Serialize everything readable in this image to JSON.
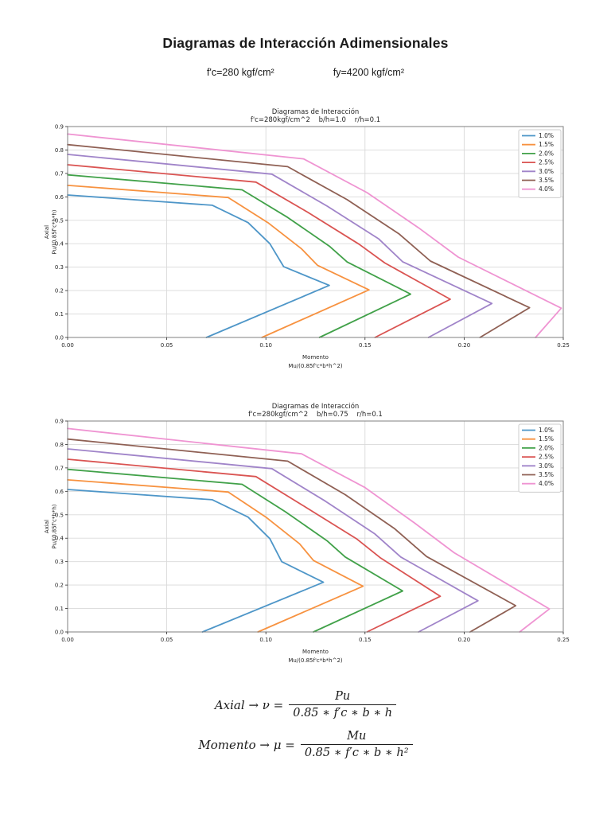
{
  "page": {
    "title": "Diagramas de Interacción Adimensionales",
    "subtitle_fc": "f'c=280 kgf/cm²",
    "subtitle_fy": "fy=4200 kgf/cm²"
  },
  "formulas": {
    "axial": {
      "lhs": "Axial → ν =",
      "numerator": "Pu",
      "denominator": "0.85 ∗ f′c ∗ b ∗ h"
    },
    "momento": {
      "lhs": "Momento → μ =",
      "numerator": "Mu",
      "denominator": "0.85 ∗ f′c ∗ b ∗ h²"
    }
  },
  "chart_data": [
    {
      "type": "line",
      "title_line1": "Diagramas de Interacción",
      "title_line2": "f'c=280kgf/cm^2    b/h=1.0    r/h=0.1",
      "xlabel_line1": "Momento",
      "xlabel_line2": "Mu/(0.85f'c*b*h^2)",
      "ylabel_line1": "Axial",
      "ylabel_line2": "Pu/(0.85f'c*b*h)",
      "xlim": [
        0,
        0.25
      ],
      "ylim": [
        0,
        0.9
      ],
      "x_ticks": [
        "0.00",
        "0.05",
        "0.10",
        "0.15",
        "0.20",
        "0.25"
      ],
      "y_ticks": [
        "0.0",
        "0.1",
        "0.2",
        "0.3",
        "0.4",
        "0.5",
        "0.6",
        "0.7",
        "0.8",
        "0.9"
      ],
      "grid": true,
      "legend_position": "upper right",
      "series": [
        {
          "name": "1.0%",
          "color": "#4e96c8",
          "points": [
            [
              0,
              0.608
            ],
            [
              0.073,
              0.564
            ],
            [
              0.091,
              0.49
            ],
            [
              0.102,
              0.4
            ],
            [
              0.109,
              0.302
            ],
            [
              0.132,
              0.222
            ],
            [
              0.07,
              0
            ]
          ]
        },
        {
          "name": "1.5%",
          "color": "#f79240",
          "points": [
            [
              0,
              0.649
            ],
            [
              0.081,
              0.597
            ],
            [
              0.101,
              0.49
            ],
            [
              0.118,
              0.378
            ],
            [
              0.126,
              0.308
            ],
            [
              0.152,
              0.203
            ],
            [
              0.098,
              0
            ]
          ]
        },
        {
          "name": "2.0%",
          "color": "#41a149",
          "points": [
            [
              0,
              0.694
            ],
            [
              0.088,
              0.63
            ],
            [
              0.111,
              0.512
            ],
            [
              0.132,
              0.39
            ],
            [
              0.141,
              0.322
            ],
            [
              0.173,
              0.185
            ],
            [
              0.127,
              0
            ]
          ]
        },
        {
          "name": "2.5%",
          "color": "#da5452",
          "points": [
            [
              0,
              0.737
            ],
            [
              0.095,
              0.663
            ],
            [
              0.121,
              0.535
            ],
            [
              0.147,
              0.398
            ],
            [
              0.16,
              0.318
            ],
            [
              0.193,
              0.163
            ],
            [
              0.155,
              0
            ]
          ]
        },
        {
          "name": "3.0%",
          "color": "#a084c9",
          "points": [
            [
              0,
              0.781
            ],
            [
              0.103,
              0.697
            ],
            [
              0.131,
              0.56
            ],
            [
              0.157,
              0.42
            ],
            [
              0.169,
              0.323
            ],
            [
              0.214,
              0.145
            ],
            [
              0.182,
              0
            ]
          ]
        },
        {
          "name": "3.5%",
          "color": "#8f6054",
          "points": [
            [
              0,
              0.823
            ],
            [
              0.111,
              0.729
            ],
            [
              0.141,
              0.588
            ],
            [
              0.167,
              0.443
            ],
            [
              0.183,
              0.326
            ],
            [
              0.233,
              0.127
            ],
            [
              0.208,
              0
            ]
          ]
        },
        {
          "name": "4.0%",
          "color": "#ef94d2",
          "points": [
            [
              0,
              0.868
            ],
            [
              0.119,
              0.762
            ],
            [
              0.151,
              0.618
            ],
            [
              0.177,
              0.468
            ],
            [
              0.197,
              0.343
            ],
            [
              0.249,
              0.125
            ],
            [
              0.236,
              0
            ]
          ]
        }
      ]
    },
    {
      "type": "line",
      "title_line1": "Diagramas de Interacción",
      "title_line2": "f'c=280kgf/cm^2    b/h=0.75    r/h=0.1",
      "xlabel_line1": "Momento",
      "xlabel_line2": "Mu/(0.85f'c*b*h^2)",
      "ylabel_line1": "Axial",
      "ylabel_line2": "Pu/(0.85f'c*b*h)",
      "xlim": [
        0,
        0.25
      ],
      "ylim": [
        0,
        0.9
      ],
      "x_ticks": [
        "0.00",
        "0.05",
        "0.10",
        "0.15",
        "0.20",
        "0.25"
      ],
      "y_ticks": [
        "0.0",
        "0.1",
        "0.2",
        "0.3",
        "0.4",
        "0.5",
        "0.6",
        "0.7",
        "0.8",
        "0.9"
      ],
      "grid": true,
      "legend_position": "upper right",
      "series": [
        {
          "name": "1.0%",
          "color": "#4e96c8",
          "points": [
            [
              0,
              0.608
            ],
            [
              0.073,
              0.564
            ],
            [
              0.091,
              0.49
            ],
            [
              0.102,
              0.398
            ],
            [
              0.108,
              0.3
            ],
            [
              0.129,
              0.212
            ],
            [
              0.068,
              0
            ]
          ]
        },
        {
          "name": "1.5%",
          "color": "#f79240",
          "points": [
            [
              0,
              0.649
            ],
            [
              0.081,
              0.597
            ],
            [
              0.1,
              0.49
            ],
            [
              0.117,
              0.376
            ],
            [
              0.124,
              0.305
            ],
            [
              0.149,
              0.195
            ],
            [
              0.096,
              0
            ]
          ]
        },
        {
          "name": "2.0%",
          "color": "#41a149",
          "points": [
            [
              0,
              0.694
            ],
            [
              0.088,
              0.63
            ],
            [
              0.11,
              0.512
            ],
            [
              0.131,
              0.388
            ],
            [
              0.14,
              0.32
            ],
            [
              0.169,
              0.175
            ],
            [
              0.124,
              0
            ]
          ]
        },
        {
          "name": "2.5%",
          "color": "#da5452",
          "points": [
            [
              0,
              0.737
            ],
            [
              0.095,
              0.663
            ],
            [
              0.12,
              0.533
            ],
            [
              0.146,
              0.396
            ],
            [
              0.158,
              0.315
            ],
            [
              0.188,
              0.152
            ],
            [
              0.151,
              0
            ]
          ]
        },
        {
          "name": "3.0%",
          "color": "#a084c9",
          "points": [
            [
              0,
              0.781
            ],
            [
              0.103,
              0.697
            ],
            [
              0.13,
              0.558
            ],
            [
              0.155,
              0.418
            ],
            [
              0.168,
              0.32
            ],
            [
              0.207,
              0.133
            ],
            [
              0.177,
              0
            ]
          ]
        },
        {
          "name": "3.5%",
          "color": "#8f6054",
          "points": [
            [
              0,
              0.823
            ],
            [
              0.111,
              0.729
            ],
            [
              0.14,
              0.586
            ],
            [
              0.165,
              0.44
            ],
            [
              0.181,
              0.322
            ],
            [
              0.226,
              0.112
            ],
            [
              0.203,
              0
            ]
          ]
        },
        {
          "name": "4.0%",
          "color": "#ef94d2",
          "points": [
            [
              0,
              0.868
            ],
            [
              0.118,
              0.76
            ],
            [
              0.15,
              0.616
            ],
            [
              0.175,
              0.465
            ],
            [
              0.195,
              0.338
            ],
            [
              0.243,
              0.098
            ],
            [
              0.228,
              0
            ]
          ]
        }
      ]
    }
  ],
  "style": {
    "grid_color": "#d9d9d9",
    "spine_color": "#7f7f7f",
    "text_color": "#262626",
    "legend_border": "#cccccc"
  }
}
